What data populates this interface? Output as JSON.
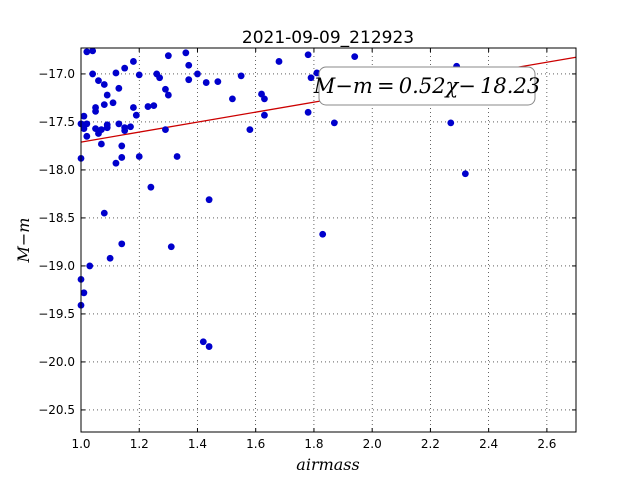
{
  "chart_data": {
    "type": "scatter",
    "title": "2021-09-09_212923",
    "xlabel": "airmass",
    "ylabel": "M−m",
    "xlim": [
      1.0,
      2.7
    ],
    "ylim": [
      -20.73,
      -16.73
    ],
    "y_inverted": true,
    "grid": true,
    "xticks": [
      1.0,
      1.2,
      1.4,
      1.6,
      1.8,
      2.0,
      2.2,
      2.4,
      2.6
    ],
    "xtick_labels": [
      "1.0",
      "1.2",
      "1.4",
      "1.6",
      "1.8",
      "2.0",
      "2.2",
      "2.4",
      "2.6"
    ],
    "yticks": [
      -17.0,
      -17.5,
      -18.0,
      -18.5,
      -19.0,
      -19.5,
      -20.0,
      -20.5
    ],
    "ytick_labels": [
      "−17.0",
      "−17.5",
      "−18.0",
      "−18.5",
      "−19.0",
      "−19.5",
      "−20.0",
      "−20.5"
    ],
    "annotation": "M−m = 0.52χ− 18.23",
    "fit": {
      "slope": 0.52,
      "intercept": -18.23,
      "color": "#cc0000"
    },
    "point_color": "#0000cc",
    "x": [
      1.0,
      1.0,
      1.0,
      1.0,
      1.01,
      1.01,
      1.01,
      1.02,
      1.02,
      1.02,
      1.03,
      1.04,
      1.04,
      1.05,
      1.05,
      1.05,
      1.06,
      1.06,
      1.07,
      1.07,
      1.08,
      1.08,
      1.08,
      1.09,
      1.09,
      1.09,
      1.1,
      1.11,
      1.12,
      1.12,
      1.13,
      1.13,
      1.14,
      1.14,
      1.14,
      1.15,
      1.15,
      1.15,
      1.17,
      1.18,
      1.18,
      1.19,
      1.2,
      1.2,
      1.23,
      1.24,
      1.25,
      1.26,
      1.27,
      1.29,
      1.29,
      1.3,
      1.3,
      1.31,
      1.33,
      1.36,
      1.37,
      1.37,
      1.4,
      1.42,
      1.43,
      1.44,
      1.44,
      1.47,
      1.52,
      1.55,
      1.58,
      1.62,
      1.63,
      1.63,
      1.68,
      1.78,
      1.78,
      1.79,
      1.81,
      1.83,
      1.87,
      1.94,
      2.27,
      2.29,
      2.32
    ],
    "y": [
      -17.88,
      -19.14,
      -19.41,
      -17.52,
      -17.44,
      -17.57,
      -19.28,
      -17.65,
      -16.77,
      -17.52,
      -19.0,
      -16.76,
      -17.0,
      -17.57,
      -17.39,
      -17.35,
      -17.07,
      -17.62,
      -17.73,
      -17.58,
      -17.11,
      -17.32,
      -18.45,
      -17.22,
      -17.53,
      -17.56,
      -18.92,
      -17.3,
      -17.93,
      -16.99,
      -17.15,
      -17.52,
      -17.87,
      -17.75,
      -18.77,
      -17.59,
      -17.56,
      -16.94,
      -17.55,
      -16.87,
      -17.35,
      -17.43,
      -17.86,
      -17.01,
      -17.34,
      -18.18,
      -17.33,
      -17.0,
      -17.04,
      -17.16,
      -17.58,
      -17.22,
      -16.81,
      -18.8,
      -17.86,
      -16.78,
      -16.91,
      -17.06,
      -17.0,
      -19.79,
      -17.09,
      -19.84,
      -18.31,
      -17.08,
      -17.26,
      -17.02,
      -17.58,
      -17.21,
      -17.26,
      -17.43,
      -16.87,
      -16.8,
      -17.4,
      -17.04,
      -16.99,
      -18.67,
      -17.51,
      -16.82,
      -17.51,
      -16.92,
      -18.04
    ]
  }
}
